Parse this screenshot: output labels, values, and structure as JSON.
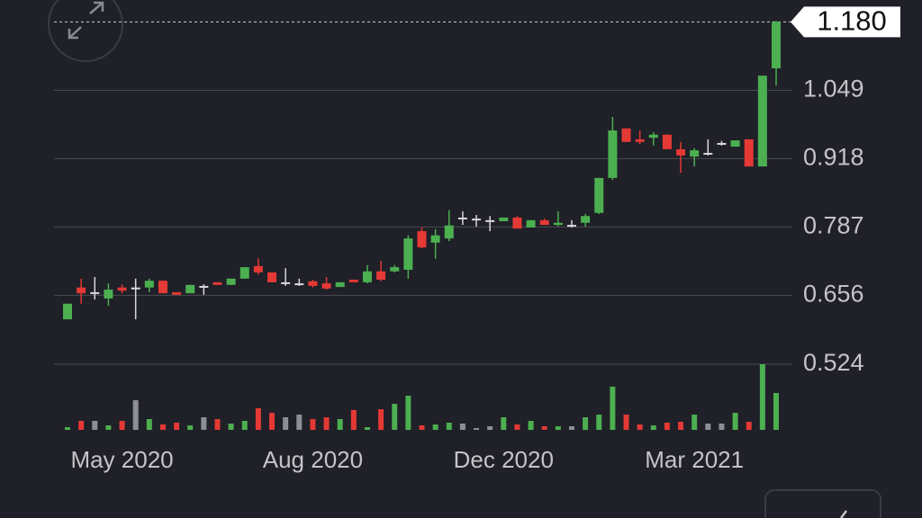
{
  "chart_data": {
    "type": "candlestick",
    "x": [
      null,
      null,
      null,
      null,
      "May 2020",
      null,
      null,
      null,
      null,
      null,
      null,
      null,
      null,
      null,
      null,
      null,
      null,
      null,
      "Aug 2020",
      null,
      null,
      null,
      null,
      null,
      null,
      null,
      null,
      null,
      null,
      null,
      null,
      null,
      "Dec 2020",
      null,
      null,
      null,
      null,
      null,
      null,
      null,
      null,
      null,
      null,
      null,
      null,
      null,
      "Mar 2021",
      null,
      null,
      null,
      null,
      null,
      null
    ],
    "open": [
      0.61,
      0.671,
      0.662,
      0.65,
      0.671,
      0.671,
      0.671,
      0.684,
      0.662,
      0.66,
      0.674,
      0.681,
      0.676,
      0.688,
      0.712,
      0.7,
      0.681,
      0.679,
      0.683,
      0.679,
      0.672,
      0.686,
      0.681,
      0.702,
      0.702,
      0.705,
      0.779,
      0.757,
      0.765,
      0.805,
      0.803,
      0.8,
      0.798,
      0.805,
      0.786,
      0.8,
      0.791,
      0.791,
      0.795,
      0.814,
      0.881,
      0.976,
      0.955,
      0.958,
      0.964,
      0.936,
      0.922,
      0.929,
      0.948,
      0.941,
      0.955,
      0.903,
      1.091
    ],
    "high": [
      0.64,
      0.688,
      0.691,
      0.679,
      0.677,
      0.688,
      0.688,
      0.684,
      0.662,
      0.676,
      0.677,
      0.681,
      0.688,
      0.71,
      0.727,
      0.7,
      0.708,
      0.688,
      0.686,
      0.691,
      0.681,
      0.686,
      0.714,
      0.722,
      0.714,
      0.771,
      0.786,
      0.783,
      0.819,
      0.817,
      0.81,
      0.808,
      0.805,
      0.808,
      0.8,
      0.803,
      0.817,
      0.8,
      0.812,
      0.881,
      0.998,
      0.976,
      0.972,
      0.969,
      0.964,
      0.95,
      0.938,
      0.955,
      0.952,
      0.953,
      0.955,
      1.077,
      1.182
    ],
    "low": [
      0.61,
      0.64,
      0.648,
      0.636,
      0.66,
      0.61,
      0.662,
      0.66,
      0.657,
      0.66,
      0.657,
      0.676,
      0.676,
      0.688,
      0.696,
      0.681,
      0.674,
      0.674,
      0.671,
      0.667,
      0.672,
      0.681,
      0.679,
      0.683,
      0.7,
      0.688,
      0.746,
      0.726,
      0.76,
      0.791,
      0.788,
      0.779,
      0.798,
      0.784,
      0.786,
      0.791,
      0.788,
      0.786,
      0.788,
      0.812,
      0.877,
      0.95,
      0.946,
      0.943,
      0.936,
      0.891,
      0.903,
      0.924,
      0.943,
      0.941,
      0.903,
      0.903,
      1.058
    ],
    "close": [
      0.64,
      0.66,
      0.662,
      0.667,
      0.665,
      0.671,
      0.684,
      0.66,
      0.657,
      0.676,
      0.674,
      0.676,
      0.688,
      0.71,
      0.7,
      0.681,
      0.681,
      0.679,
      0.674,
      0.669,
      0.681,
      0.681,
      0.702,
      0.686,
      0.71,
      0.765,
      0.748,
      0.771,
      0.79,
      0.805,
      0.803,
      0.8,
      0.805,
      0.784,
      0.8,
      0.791,
      0.795,
      0.791,
      0.808,
      0.881,
      0.972,
      0.95,
      0.95,
      0.964,
      0.936,
      0.924,
      0.934,
      0.929,
      0.948,
      0.953,
      0.903,
      1.077,
      1.18
    ],
    "volume": [
      3,
      10,
      10,
      5,
      10,
      33,
      12,
      6,
      8,
      5,
      14,
      12,
      7,
      10,
      24,
      19,
      14,
      17,
      12,
      14,
      12,
      22,
      3,
      23,
      29,
      38,
      5,
      6,
      8,
      7,
      2,
      4,
      14,
      6,
      10,
      4,
      4,
      4,
      14,
      17,
      48,
      17,
      6,
      5,
      8,
      9,
      17,
      7,
      7,
      19,
      9,
      73,
      41
    ],
    "up_color": "#4caf50",
    "down_color": "#e53935",
    "flat_color": "#8e8f96",
    "ylim": [
      0.524,
      1.222
    ],
    "yticks": [
      0.524,
      0.656,
      0.787,
      0.918,
      1.049
    ],
    "y2lim": [
      0,
      73
    ],
    "last_price": {
      "value": 1.18,
      "label": "1.180"
    },
    "grid": true
  }
}
